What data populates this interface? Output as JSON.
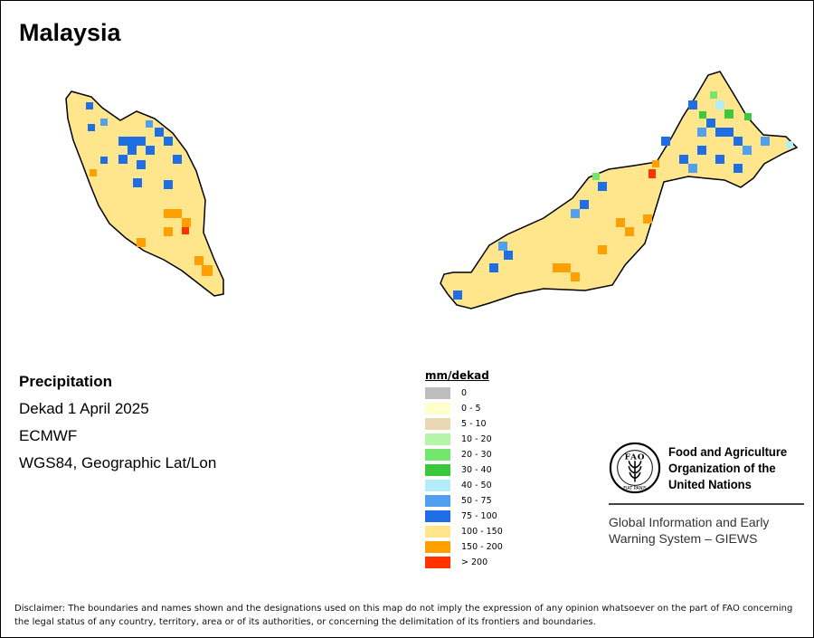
{
  "title": "Malaysia",
  "info": {
    "variable": "Precipitation",
    "period": "Dekad 1 April 2025",
    "source": "ECMWF",
    "projection": "WGS84, Geographic Lat/Lon"
  },
  "legend": {
    "title": "mm/dekad",
    "classes": [
      {
        "label": "0",
        "color": "#bdbdbd"
      },
      {
        "label": "0 - 5",
        "color": "#ffffcc"
      },
      {
        "label": "5 - 10",
        "color": "#ead7b4"
      },
      {
        "label": "10 - 20",
        "color": "#b4f5a8"
      },
      {
        "label": "20 - 30",
        "color": "#73e66e"
      },
      {
        "label": "30 - 40",
        "color": "#3cc83c"
      },
      {
        "label": "40 - 50",
        "color": "#b4ecfa"
      },
      {
        "label": "50 - 75",
        "color": "#50a0f0"
      },
      {
        "label": "75 - 100",
        "color": "#1e6ee6"
      },
      {
        "label": "100 - 150",
        "color": "#ffe68c"
      },
      {
        "label": "150 - 200",
        "color": "#ffa000"
      },
      {
        "label": "> 200",
        "color": "#ff3200"
      }
    ]
  },
  "fao": {
    "name_lines": [
      "Food and Agriculture",
      "Organization of the",
      "United Nations"
    ],
    "giews_lines": [
      "Global Information and Early",
      "Warning System – GIEWS"
    ],
    "logo_text": "FAO",
    "motto": "FIAT PANIS"
  },
  "disclaimer": "Disclaimer: The boundaries and names shown and the designations used on this map do not imply the expression of any opinion whatsoever on the part of FAO concerning the legal status of any country, territory, area or of its authorities, or concerning the delimitation of its frontiers and boundaries."
}
